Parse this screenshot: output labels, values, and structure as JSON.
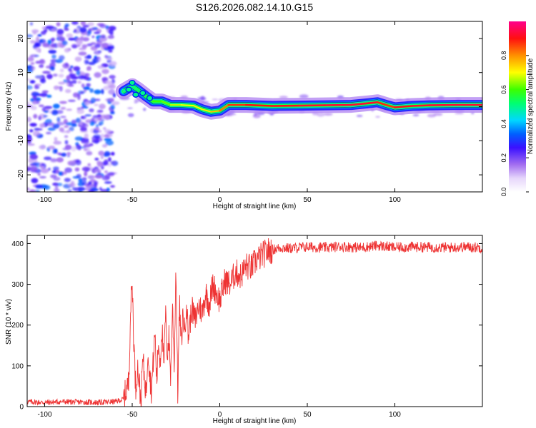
{
  "figure": {
    "title": "S126.2026.082.14.10.G15"
  },
  "chart_data": [
    {
      "type": "heatmap",
      "name": "spectrogram",
      "xlabel": "Height of straight line (km)",
      "ylabel": "Frequency (Hz)",
      "xlim": [
        -110,
        150
      ],
      "ylim": [
        -25,
        25
      ],
      "xticks": [
        -100,
        -50,
        0,
        50,
        100
      ],
      "yticks": [
        -20,
        -10,
        0,
        10,
        20
      ],
      "colorbar": {
        "label": "Normalized spectral amplitude",
        "range": [
          0,
          1
        ],
        "ticks": [
          0.0,
          0.2,
          0.4,
          0.6,
          0.8
        ],
        "tick_labels": [
          "0.0",
          "0.2",
          "0.4",
          "0.6",
          "0.8"
        ],
        "colors": [
          "#ffffff",
          "#c9a8f5",
          "#8a2be2",
          "#1010ff",
          "#00d0ff",
          "#00ff40",
          "#ffff00",
          "#ff8000",
          "#ff0030",
          "#ff0090"
        ]
      },
      "ridge": {
        "x": [
          -55,
          -50,
          -47,
          -42,
          -38,
          -33,
          -28,
          -22,
          -15,
          -10,
          -5,
          0,
          5,
          15,
          30,
          45,
          60,
          75,
          85,
          90,
          95,
          100,
          110,
          120,
          135,
          150
        ],
        "f": [
          4.5,
          6,
          5,
          3,
          1.5,
          1.5,
          0.5,
          0.5,
          0.3,
          -0.8,
          -1.5,
          -1.2,
          0.5,
          0.5,
          0.2,
          0.3,
          0.4,
          0.5,
          1,
          1.3,
          0.5,
          -0.2,
          0.2,
          0.4,
          0.5,
          0.5
        ],
        "amplitude": [
          0.45,
          0.5,
          0.5,
          0.55,
          0.6,
          0.6,
          0.65,
          0.7,
          0.7,
          0.72,
          0.72,
          0.8,
          0.85,
          0.9,
          0.9,
          0.92,
          0.93,
          0.93,
          0.93,
          0.92,
          0.85,
          0.9,
          0.92,
          0.93,
          0.93,
          0.93
        ]
      },
      "noise_region": {
        "x": [
          -110,
          -60
        ],
        "f": [
          -25,
          25
        ],
        "amplitude": [
          0.1,
          0.35
        ]
      }
    },
    {
      "type": "line",
      "name": "snr",
      "xlabel": "Height of straight line (km)",
      "ylabel": "SNR (10 * v/v)",
      "xlim": [
        -110,
        150
      ],
      "ylim": [
        0,
        420
      ],
      "xticks": [
        -100,
        -50,
        0,
        50,
        100
      ],
      "yticks": [
        0,
        100,
        200,
        300,
        400
      ],
      "color": "#ee3333",
      "series": [
        {
          "name": "SNR",
          "x": [
            -110,
            -100,
            -90,
            -80,
            -70,
            -60,
            -55,
            -52,
            -51,
            -50,
            -49,
            -48,
            -47,
            -46,
            -45,
            -44,
            -43,
            -42,
            -41,
            -40,
            -39,
            -38,
            -37,
            -36,
            -35,
            -34,
            -33,
            -32,
            -31,
            -30,
            -29,
            -28,
            -27,
            -26,
            -25,
            -24,
            -23,
            -22,
            -21,
            -20,
            -19,
            -18,
            -16,
            -14,
            -12,
            -10,
            -8,
            -6,
            -4,
            -2,
            0,
            3,
            6,
            9,
            12,
            15,
            18,
            21,
            24,
            27,
            30,
            35,
            40,
            50,
            60,
            70,
            80,
            90,
            100,
            110,
            120,
            130,
            140,
            150
          ],
          "y": [
            12,
            10,
            12,
            11,
            10,
            12,
            18,
            60,
            230,
            305,
            150,
            40,
            100,
            60,
            10,
            120,
            70,
            30,
            150,
            80,
            40,
            110,
            180,
            60,
            160,
            110,
            200,
            90,
            230,
            130,
            170,
            70,
            250,
            100,
            350,
            30,
            250,
            150,
            230,
            180,
            260,
            170,
            240,
            210,
            250,
            230,
            280,
            250,
            300,
            280,
            260,
            310,
            300,
            330,
            320,
            345,
            340,
            360,
            370,
            380,
            385,
            390,
            388,
            392,
            390,
            393,
            390,
            395,
            390,
            392,
            391,
            390,
            392,
            390
          ]
        }
      ]
    }
  ]
}
